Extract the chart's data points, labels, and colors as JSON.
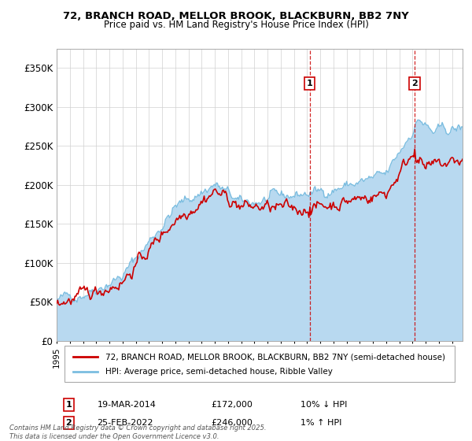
{
  "title1": "72, BRANCH ROAD, MELLOR BROOK, BLACKBURN, BB2 7NY",
  "title2": "Price paid vs. HM Land Registry's House Price Index (HPI)",
  "legend1": "72, BRANCH ROAD, MELLOR BROOK, BLACKBURN, BB2 7NY (semi-detached house)",
  "legend2": "HPI: Average price, semi-detached house, Ribble Valley",
  "annotation1_date": "19-MAR-2014",
  "annotation1_price": "£172,000",
  "annotation1_note": "10% ↓ HPI",
  "annotation1_year": 2014.21,
  "annotation2_date": "25-FEB-2022",
  "annotation2_price": "£246,000",
  "annotation2_note": "1% ↑ HPI",
  "annotation2_year": 2022.15,
  "footer": "Contains HM Land Registry data © Crown copyright and database right 2025.\nThis data is licensed under the Open Government Licence v3.0.",
  "hpi_color": "#7bbde0",
  "hpi_fill_color": "#b8d9f0",
  "price_color": "#cc0000",
  "vline_color": "#cc0000",
  "box_edge_color": "#cc0000",
  "bg_color": "#ffffff",
  "plot_bg_color": "#ffffff",
  "grid_color": "#d0d0d0",
  "outer_bg": "#e8eef5",
  "ylim": [
    0,
    375000
  ],
  "yticks": [
    0,
    50000,
    100000,
    150000,
    200000,
    250000,
    300000,
    350000
  ],
  "ytick_labels": [
    "£0",
    "£50K",
    "£100K",
    "£150K",
    "£200K",
    "£250K",
    "£300K",
    "£350K"
  ],
  "xlim_start": 1995,
  "xlim_end": 2025.8
}
